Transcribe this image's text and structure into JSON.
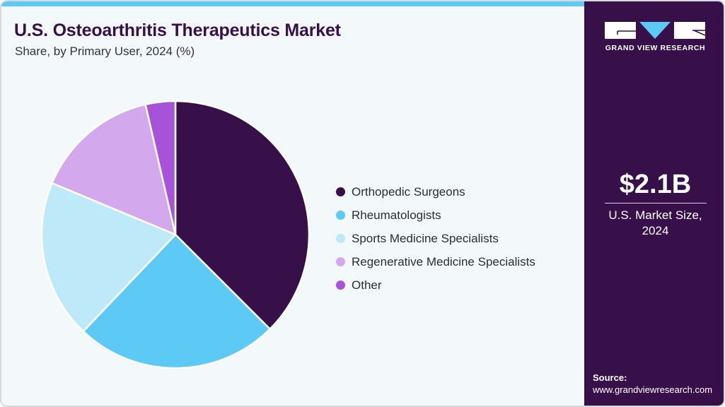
{
  "header": {
    "title": "U.S. Osteoarthritis Therapeutics Market",
    "subtitle": "Share, by Primary User, 2024 (%)"
  },
  "legend": {
    "items": [
      {
        "label": "Orthopedic Surgeons",
        "color": "#37104a"
      },
      {
        "label": "Rheumatologists",
        "color": "#5dc9f5"
      },
      {
        "label": "Sports Medicine Specialists",
        "color": "#bde9f9"
      },
      {
        "label": "Regenerative Medicine Specialists",
        "color": "#d3a8ec"
      },
      {
        "label": "Other",
        "color": "#a653d9"
      }
    ]
  },
  "side_panel": {
    "brand": "GRAND VIEW RESEARCH",
    "market_value": "$2.1B",
    "market_label_line1": "U.S. Market Size,",
    "market_label_line2": "2024",
    "source_label": "Source:",
    "source_url": "www.grandviewresearch.com"
  },
  "colors": {
    "accent_bar": "#5dc9f5",
    "panel_bg": "#37104a",
    "card_bg": "#f3f8fb"
  },
  "chart_data": {
    "type": "pie",
    "title": "U.S. Osteoarthritis Therapeutics Market",
    "subtitle": "Share, by Primary User, 2024 (%)",
    "categories": [
      "Orthopedic Surgeons",
      "Rheumatologists",
      "Sports Medicine Specialists",
      "Regenerative Medicine Specialists",
      "Other"
    ],
    "values": [
      37.5,
      24.6,
      19.2,
      15.1,
      3.6
    ],
    "colors": [
      "#37104a",
      "#5dc9f5",
      "#bde9f9",
      "#d3a8ec",
      "#a653d9"
    ],
    "start_angle": "12 o'clock",
    "direction": "clockwise",
    "legend_position": "right",
    "annotations": [
      "$2.1B U.S. Market Size, 2024"
    ]
  }
}
